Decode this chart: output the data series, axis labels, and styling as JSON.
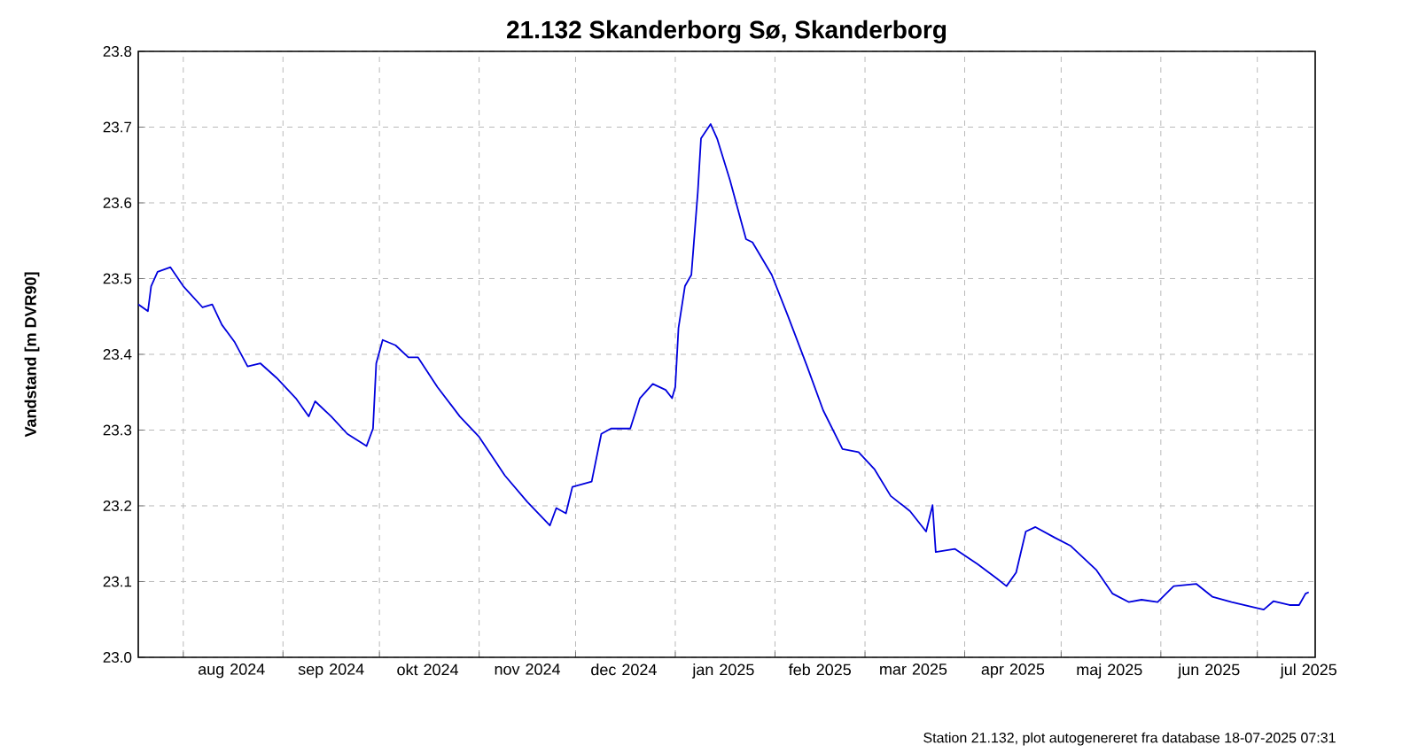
{
  "chart_data": {
    "type": "line",
    "title": "21.132 Skanderborg Sø, Skanderborg",
    "ylabel": "Vandstand [m DVR90]",
    "annotations": [
      "Station 21.132, plot autogenereret fra database 18-07-2025 07:31"
    ],
    "xlim": [
      "2024-07-18",
      "2025-07-19"
    ],
    "xticks": [
      {
        "value": "2024-08-01",
        "label": null
      },
      {
        "value": "2024-09-01",
        "label": null
      },
      {
        "value": "2024-10-01",
        "label": null
      },
      {
        "value": "2024-11-01",
        "label": null
      },
      {
        "value": "2024-12-01",
        "label": null
      },
      {
        "value": "2025-01-01",
        "label": null
      },
      {
        "value": "2025-02-01",
        "label": null
      },
      {
        "value": "2025-03-01",
        "label": null
      },
      {
        "value": "2025-04-01",
        "label": null
      },
      {
        "value": "2025-05-01",
        "label": null
      },
      {
        "value": "2025-06-01",
        "label": null
      },
      {
        "value": "2025-07-01",
        "label": null
      },
      {
        "value": "2024-08-16",
        "label": "aug 2024"
      },
      {
        "value": "2024-09-16",
        "label": "sep 2024"
      },
      {
        "value": "2024-10-16",
        "label": "okt 2024"
      },
      {
        "value": "2024-11-16",
        "label": "nov 2024"
      },
      {
        "value": "2024-12-16",
        "label": "dec 2024"
      },
      {
        "value": "2025-01-16",
        "label": "jan 2025"
      },
      {
        "value": "2025-02-15",
        "label": "feb 2025"
      },
      {
        "value": "2025-03-16",
        "label": "mar 2025"
      },
      {
        "value": "2025-04-16",
        "label": "apr 2025"
      },
      {
        "value": "2025-05-16",
        "label": "maj 2025"
      },
      {
        "value": "2025-06-16",
        "label": "jun 2025"
      },
      {
        "value": "2025-07-17",
        "label": "jul 2025"
      }
    ],
    "ylim": [
      23.0,
      23.8
    ],
    "yticks": [
      {
        "value": 23.0,
        "label": "23.0"
      },
      23.1,
      23.2,
      23.3,
      23.4,
      23.5,
      23.6,
      23.7,
      23.8
    ],
    "grid": true,
    "legend": false,
    "marker": "none",
    "line_style": "solid",
    "x": [
      "2024-07-18",
      "2024-07-21",
      "2024-07-22",
      "2024-07-24",
      "2024-07-28",
      "2024-08-01",
      "2024-08-07",
      "2024-08-10",
      "2024-08-13",
      "2024-08-17",
      "2024-08-21",
      "2024-08-25",
      "2024-08-30",
      "2024-09-05",
      "2024-09-09",
      "2024-09-11",
      "2024-09-16",
      "2024-09-21",
      "2024-09-27",
      "2024-09-29",
      "2024-09-30",
      "2024-10-02",
      "2024-10-06",
      "2024-10-10",
      "2024-10-13",
      "2024-10-19",
      "2024-10-26",
      "2024-11-01",
      "2024-11-09",
      "2024-11-16",
      "2024-11-23",
      "2024-11-25",
      "2024-11-28",
      "2024-11-30",
      "2024-12-06",
      "2024-12-09",
      "2024-12-12",
      "2024-12-18",
      "2024-12-21",
      "2024-12-25",
      "2024-12-29",
      "2024-12-31",
      "2025-01-01",
      "2025-01-02",
      "2025-01-04",
      "2025-01-06",
      "2025-01-08",
      "2025-01-09",
      "2025-01-12",
      "2025-01-14",
      "2025-01-18",
      "2025-01-23",
      "2025-01-25",
      "2025-01-31",
      "2025-02-05",
      "2025-02-11",
      "2025-02-16",
      "2025-02-22",
      "2025-02-27",
      "2025-03-04",
      "2025-03-09",
      "2025-03-15",
      "2025-03-20",
      "2025-03-22",
      "2025-03-23",
      "2025-03-29",
      "2025-04-05",
      "2025-04-11",
      "2025-04-14",
      "2025-04-17",
      "2025-04-20",
      "2025-04-23",
      "2025-04-29",
      "2025-05-04",
      "2025-05-12",
      "2025-05-17",
      "2025-05-22",
      "2025-05-26",
      "2025-05-31",
      "2025-06-05",
      "2025-06-12",
      "2025-06-17",
      "2025-06-23",
      "2025-06-30",
      "2025-07-03",
      "2025-07-06",
      "2025-07-11",
      "2025-07-14",
      "2025-07-16",
      "2025-07-17"
    ],
    "series": [
      {
        "color": "#0000dd",
        "values": [
          23.466,
          23.457,
          23.49,
          23.509,
          23.515,
          23.49,
          23.462,
          23.466,
          23.439,
          23.416,
          23.384,
          23.388,
          23.369,
          23.342,
          23.318,
          23.338,
          23.318,
          23.295,
          23.279,
          23.302,
          23.388,
          23.419,
          23.412,
          23.396,
          23.396,
          23.357,
          23.318,
          23.291,
          23.24,
          23.205,
          23.174,
          23.197,
          23.19,
          23.225,
          23.232,
          23.295,
          23.302,
          23.302,
          23.342,
          23.361,
          23.353,
          23.342,
          23.357,
          23.435,
          23.49,
          23.505,
          23.614,
          23.685,
          23.704,
          23.685,
          23.63,
          23.552,
          23.548,
          23.505,
          23.451,
          23.384,
          23.326,
          23.275,
          23.271,
          23.248,
          23.213,
          23.193,
          23.166,
          23.201,
          23.139,
          23.143,
          23.123,
          23.104,
          23.094,
          23.112,
          23.166,
          23.172,
          23.158,
          23.147,
          23.115,
          23.084,
          23.073,
          23.076,
          23.073,
          23.094,
          23.097,
          23.08,
          23.073,
          23.066,
          23.063,
          23.074,
          23.069,
          23.069,
          23.084,
          23.086
        ]
      }
    ]
  }
}
